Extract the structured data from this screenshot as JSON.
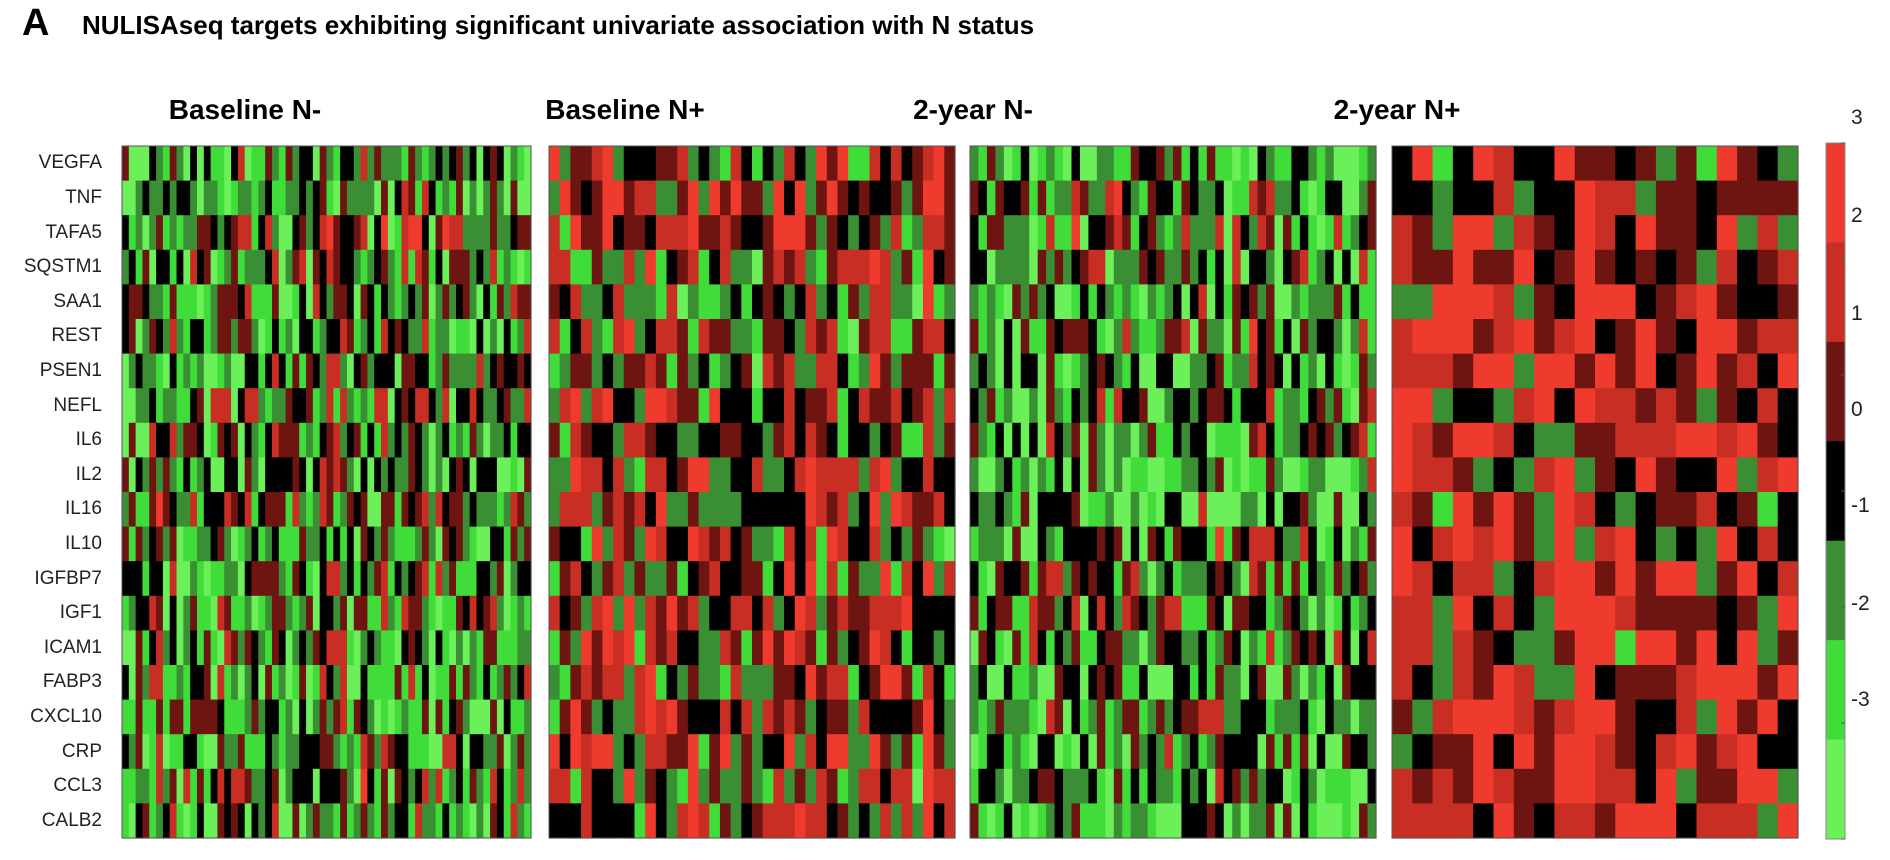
{
  "figure": {
    "panel_letter": "A",
    "title": "NULISAseq targets exhibiting significant univariate association with N status"
  },
  "colors": {
    "scale": [
      "#6BF05A",
      "#40DC3A",
      "#3A8E33",
      "#000000",
      "#6E1512",
      "#C82E24",
      "#EE3B2E"
    ],
    "border": "#555555"
  },
  "chart_data": {
    "type": "heatmap",
    "title": "NULISAseq targets exhibiting significant univariate association with N status",
    "genes": [
      "VEGFA",
      "TNF",
      "TAFA5",
      "SQSTM1",
      "SAA1",
      "REST",
      "PSEN1",
      "NEFL",
      "IL6",
      "IL2",
      "IL16",
      "IL10",
      "IGFBP7",
      "IGF1",
      "ICAM1",
      "FABP3",
      "CXCL10",
      "CRP",
      "CCL3",
      "CALB2"
    ],
    "colorbar": {
      "min": -3,
      "max": 3,
      "ticks": [
        3,
        2,
        1,
        0,
        -1,
        -2,
        -3
      ],
      "tick_labels": [
        "3",
        "2",
        "1",
        "0",
        "-1",
        "-2",
        "-3"
      ]
    },
    "panels": [
      {
        "name": "Baseline N-",
        "columns": 60,
        "bias": -0.4,
        "seed": 11
      },
      {
        "name": "Baseline N+",
        "columns": 38,
        "bias": 0.6,
        "seed": 23
      },
      {
        "name": "2-year N-",
        "columns": 48,
        "bias": -0.7,
        "seed": 37
      },
      {
        "name": "2-year N+",
        "columns": 20,
        "bias": 1.4,
        "seed": 53
      }
    ]
  }
}
